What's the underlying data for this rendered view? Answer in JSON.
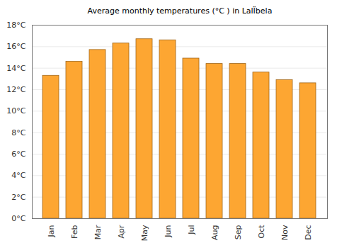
{
  "chart_data": {
    "type": "bar",
    "title": "Average monthly temperatures (°C ) in LalÏbela",
    "categories": [
      "Jan",
      "Feb",
      "Mar",
      "Apr",
      "May",
      "Jun",
      "Jul",
      "Aug",
      "Sep",
      "Oct",
      "Nov",
      "Dec"
    ],
    "values": [
      13.3,
      14.6,
      15.7,
      16.3,
      16.7,
      16.6,
      14.9,
      14.4,
      14.4,
      13.6,
      12.9,
      12.6
    ],
    "color": "#fda632",
    "ylim": [
      0,
      18
    ],
    "yticks": [
      {
        "value": 0,
        "label": "0°C"
      },
      {
        "value": 2,
        "label": "2°C"
      },
      {
        "value": 4,
        "label": "4°C"
      },
      {
        "value": 6,
        "label": "6°C"
      },
      {
        "value": 8,
        "label": "8°C"
      },
      {
        "value": 10,
        "label": "10°C"
      },
      {
        "value": 12,
        "label": "12°C"
      },
      {
        "value": 14,
        "label": "14°C"
      },
      {
        "value": 16,
        "label": "16°C"
      },
      {
        "value": 18,
        "label": "18°C"
      }
    ],
    "grid": true
  }
}
